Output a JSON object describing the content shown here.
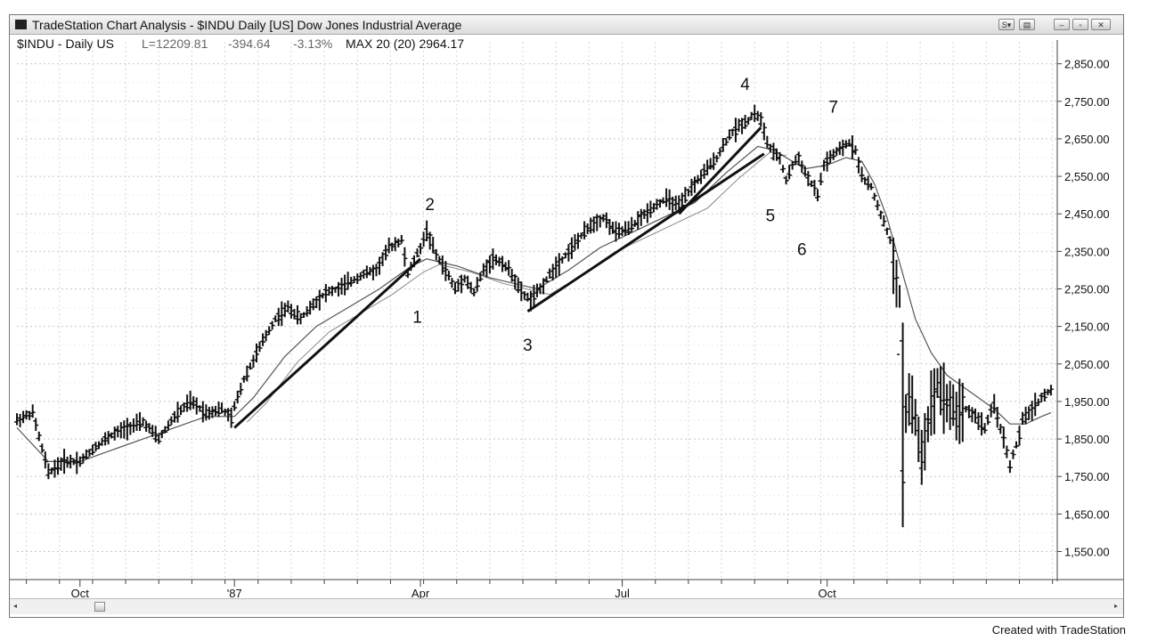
{
  "window": {
    "title": "TradeStation Chart Analysis - $INDU Daily [US] Dow Jones Industrial Average",
    "buttons": [
      "S▾",
      "▤",
      "–",
      "▫",
      "✕"
    ]
  },
  "infobar": {
    "symbol": "$INDU - Daily US",
    "last": "L=12209.81",
    "change": "-394.64",
    "pct": "-3.13%",
    "indicator": "MAX 20 (20) 2964.17"
  },
  "footer": "Created with TradeStation",
  "chart_data": {
    "type": "ohlc",
    "y_axis": {
      "ticks": [
        1550,
        1650,
        1750,
        1850,
        1950,
        2050,
        2150,
        2250,
        2350,
        2450,
        2550,
        2650,
        2750,
        2850
      ],
      "tick_labels": [
        "1,550.00",
        "1,650.00",
        "1,750.00",
        "1,850.00",
        "1,950.00",
        "2,050.00",
        "2,150.00",
        "2,250.00",
        "2,350.00",
        "2,450.00",
        "2,550.00",
        "2,650.00",
        "2,750.00",
        "2,850.00"
      ],
      "ylim": [
        1480,
        2880
      ]
    },
    "x_axis": {
      "ticks": [
        {
          "label": "Oct",
          "t": 20
        },
        {
          "label": "'87",
          "t": 69
        },
        {
          "label": "Apr",
          "t": 128
        },
        {
          "label": "Jul",
          "t": 192
        },
        {
          "label": "Oct",
          "t": 257
        }
      ],
      "range": [
        0,
        319
      ]
    },
    "price_series": [
      [
        0,
        1900
      ],
      [
        5,
        1920
      ],
      [
        10,
        1760
      ],
      [
        15,
        1790
      ],
      [
        20,
        1790
      ],
      [
        25,
        1830
      ],
      [
        30,
        1860
      ],
      [
        35,
        1880
      ],
      [
        40,
        1895
      ],
      [
        45,
        1850
      ],
      [
        50,
        1910
      ],
      [
        55,
        1950
      ],
      [
        60,
        1920
      ],
      [
        65,
        1930
      ],
      [
        68,
        1905
      ],
      [
        69,
        1935
      ],
      [
        72,
        2010
      ],
      [
        75,
        2060
      ],
      [
        78,
        2110
      ],
      [
        82,
        2170
      ],
      [
        86,
        2200
      ],
      [
        90,
        2170
      ],
      [
        94,
        2210
      ],
      [
        98,
        2240
      ],
      [
        102,
        2250
      ],
      [
        106,
        2270
      ],
      [
        110,
        2290
      ],
      [
        114,
        2300
      ],
      [
        118,
        2360
      ],
      [
        122,
        2380
      ],
      [
        124,
        2290
      ],
      [
        128,
        2360
      ],
      [
        130,
        2405
      ],
      [
        133,
        2340
      ],
      [
        136,
        2300
      ],
      [
        139,
        2250
      ],
      [
        142,
        2280
      ],
      [
        145,
        2240
      ],
      [
        148,
        2300
      ],
      [
        151,
        2330
      ],
      [
        154,
        2320
      ],
      [
        157,
        2290
      ],
      [
        160,
        2240
      ],
      [
        163,
        2220
      ],
      [
        166,
        2250
      ],
      [
        170,
        2300
      ],
      [
        174,
        2340
      ],
      [
        178,
        2380
      ],
      [
        182,
        2420
      ],
      [
        186,
        2440
      ],
      [
        190,
        2400
      ],
      [
        194,
        2410
      ],
      [
        198,
        2440
      ],
      [
        202,
        2470
      ],
      [
        206,
        2490
      ],
      [
        210,
        2470
      ],
      [
        214,
        2520
      ],
      [
        218,
        2560
      ],
      [
        222,
        2600
      ],
      [
        226,
        2660
      ],
      [
        230,
        2690
      ],
      [
        232,
        2700
      ],
      [
        234,
        2720
      ],
      [
        236,
        2700
      ],
      [
        238,
        2640
      ],
      [
        240,
        2610
      ],
      [
        242,
        2600
      ],
      [
        244,
        2540
      ],
      [
        246,
        2580
      ],
      [
        248,
        2600
      ],
      [
        250,
        2560
      ],
      [
        252,
        2530
      ],
      [
        254,
        2500
      ],
      [
        256,
        2580
      ],
      [
        258,
        2600
      ],
      [
        261,
        2620
      ],
      [
        264,
        2640
      ],
      [
        266,
        2620
      ],
      [
        268,
        2550
      ],
      [
        271,
        2520
      ],
      [
        274,
        2450
      ],
      [
        277,
        2380
      ],
      [
        279,
        2250
      ],
      [
        280,
        2100
      ],
      [
        281,
        1740
      ],
      [
        282,
        1920
      ],
      [
        283,
        1960
      ],
      [
        285,
        1900
      ],
      [
        287,
        1800
      ],
      [
        289,
        1900
      ],
      [
        292,
        2000
      ],
      [
        295,
        1950
      ],
      [
        298,
        1920
      ],
      [
        301,
        1930
      ],
      [
        304,
        1910
      ],
      [
        307,
        1880
      ],
      [
        310,
        1940
      ],
      [
        313,
        1850
      ],
      [
        315,
        1780
      ],
      [
        318,
        1860
      ],
      [
        319,
        1900
      ],
      [
        322,
        1930
      ],
      [
        325,
        1960
      ],
      [
        328,
        1980
      ]
    ],
    "moving_average": [
      [
        0,
        1880
      ],
      [
        10,
        1790
      ],
      [
        20,
        1790
      ],
      [
        30,
        1820
      ],
      [
        40,
        1850
      ],
      [
        50,
        1880
      ],
      [
        60,
        1910
      ],
      [
        69,
        1910
      ],
      [
        75,
        1960
      ],
      [
        85,
        2070
      ],
      [
        95,
        2150
      ],
      [
        105,
        2200
      ],
      [
        115,
        2250
      ],
      [
        125,
        2310
      ],
      [
        130,
        2330
      ],
      [
        140,
        2310
      ],
      [
        150,
        2280
      ],
      [
        160,
        2260
      ],
      [
        165,
        2250
      ],
      [
        175,
        2300
      ],
      [
        185,
        2360
      ],
      [
        195,
        2400
      ],
      [
        205,
        2440
      ],
      [
        215,
        2480
      ],
      [
        225,
        2560
      ],
      [
        235,
        2630
      ],
      [
        240,
        2620
      ],
      [
        250,
        2570
      ],
      [
        257,
        2580
      ],
      [
        263,
        2600
      ],
      [
        268,
        2590
      ],
      [
        272,
        2530
      ],
      [
        276,
        2440
      ],
      [
        280,
        2320
      ],
      [
        285,
        2170
      ],
      [
        290,
        2080
      ],
      [
        295,
        2020
      ],
      [
        300,
        1990
      ],
      [
        305,
        1960
      ],
      [
        310,
        1930
      ],
      [
        315,
        1890
      ],
      [
        320,
        1890
      ],
      [
        325,
        1910
      ],
      [
        328,
        1920
      ]
    ],
    "trendlines": [
      {
        "from": [
          69,
          1880
        ],
        "to": [
          128,
          2330
        ]
      },
      {
        "from": [
          162,
          2190
        ],
        "to": [
          237,
          2610
        ]
      },
      {
        "from": [
          210,
          2450
        ],
        "to": [
          236,
          2680
        ]
      }
    ],
    "annotations": [
      {
        "text": "1",
        "t": 127,
        "y": 2160
      },
      {
        "text": "2",
        "t": 131,
        "y": 2460
      },
      {
        "text": "3",
        "t": 162,
        "y": 2085
      },
      {
        "text": "4",
        "t": 231,
        "y": 2780
      },
      {
        "text": "5",
        "t": 239,
        "y": 2430
      },
      {
        "text": "6",
        "t": 249,
        "y": 2340
      },
      {
        "text": "7",
        "t": 259,
        "y": 2720
      }
    ]
  }
}
